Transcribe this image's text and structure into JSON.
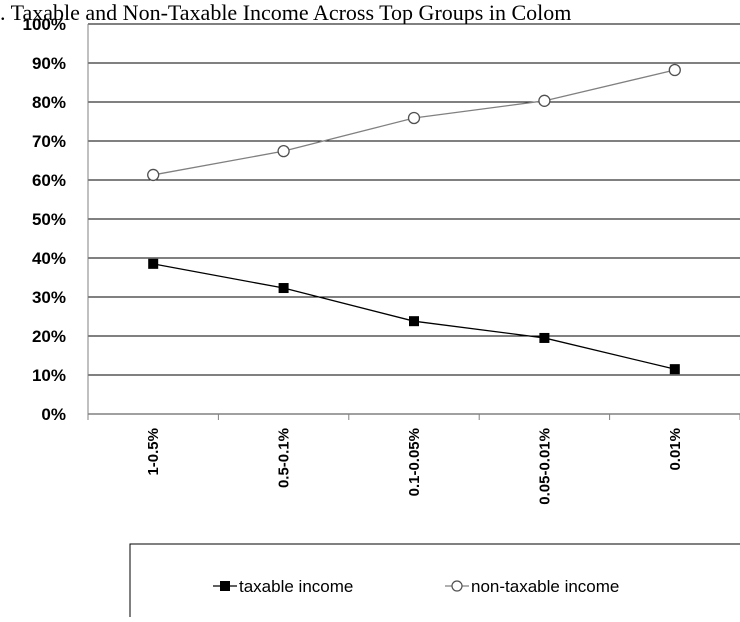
{
  "chart_data": {
    "type": "line",
    "title": "Taxable and Non-Taxable Income Across Top Groups in Colom",
    "title_prefix": ".",
    "xlabel": "",
    "ylabel": "",
    "categories": [
      "1-0.5%",
      "0.5-0.1%",
      "0.1-0.05%",
      "0.05-0.01%",
      "0.01%"
    ],
    "ylim": [
      0,
      100
    ],
    "yticks": [
      "0%",
      "10%",
      "20%",
      "30%",
      "40%",
      "50%",
      "60%",
      "70%",
      "80%",
      "90%",
      "100%"
    ],
    "grid": true,
    "legend_position": "bottom",
    "series": [
      {
        "name": "taxable income",
        "values": [
          38.5,
          32.3,
          23.8,
          19.5,
          11.5
        ],
        "color": "#000000",
        "marker": "filled-square"
      },
      {
        "name": "non-taxable income",
        "values": [
          61.3,
          67.4,
          75.9,
          80.3,
          88.2
        ],
        "color": "#808080",
        "marker": "hollow-circle"
      }
    ]
  }
}
